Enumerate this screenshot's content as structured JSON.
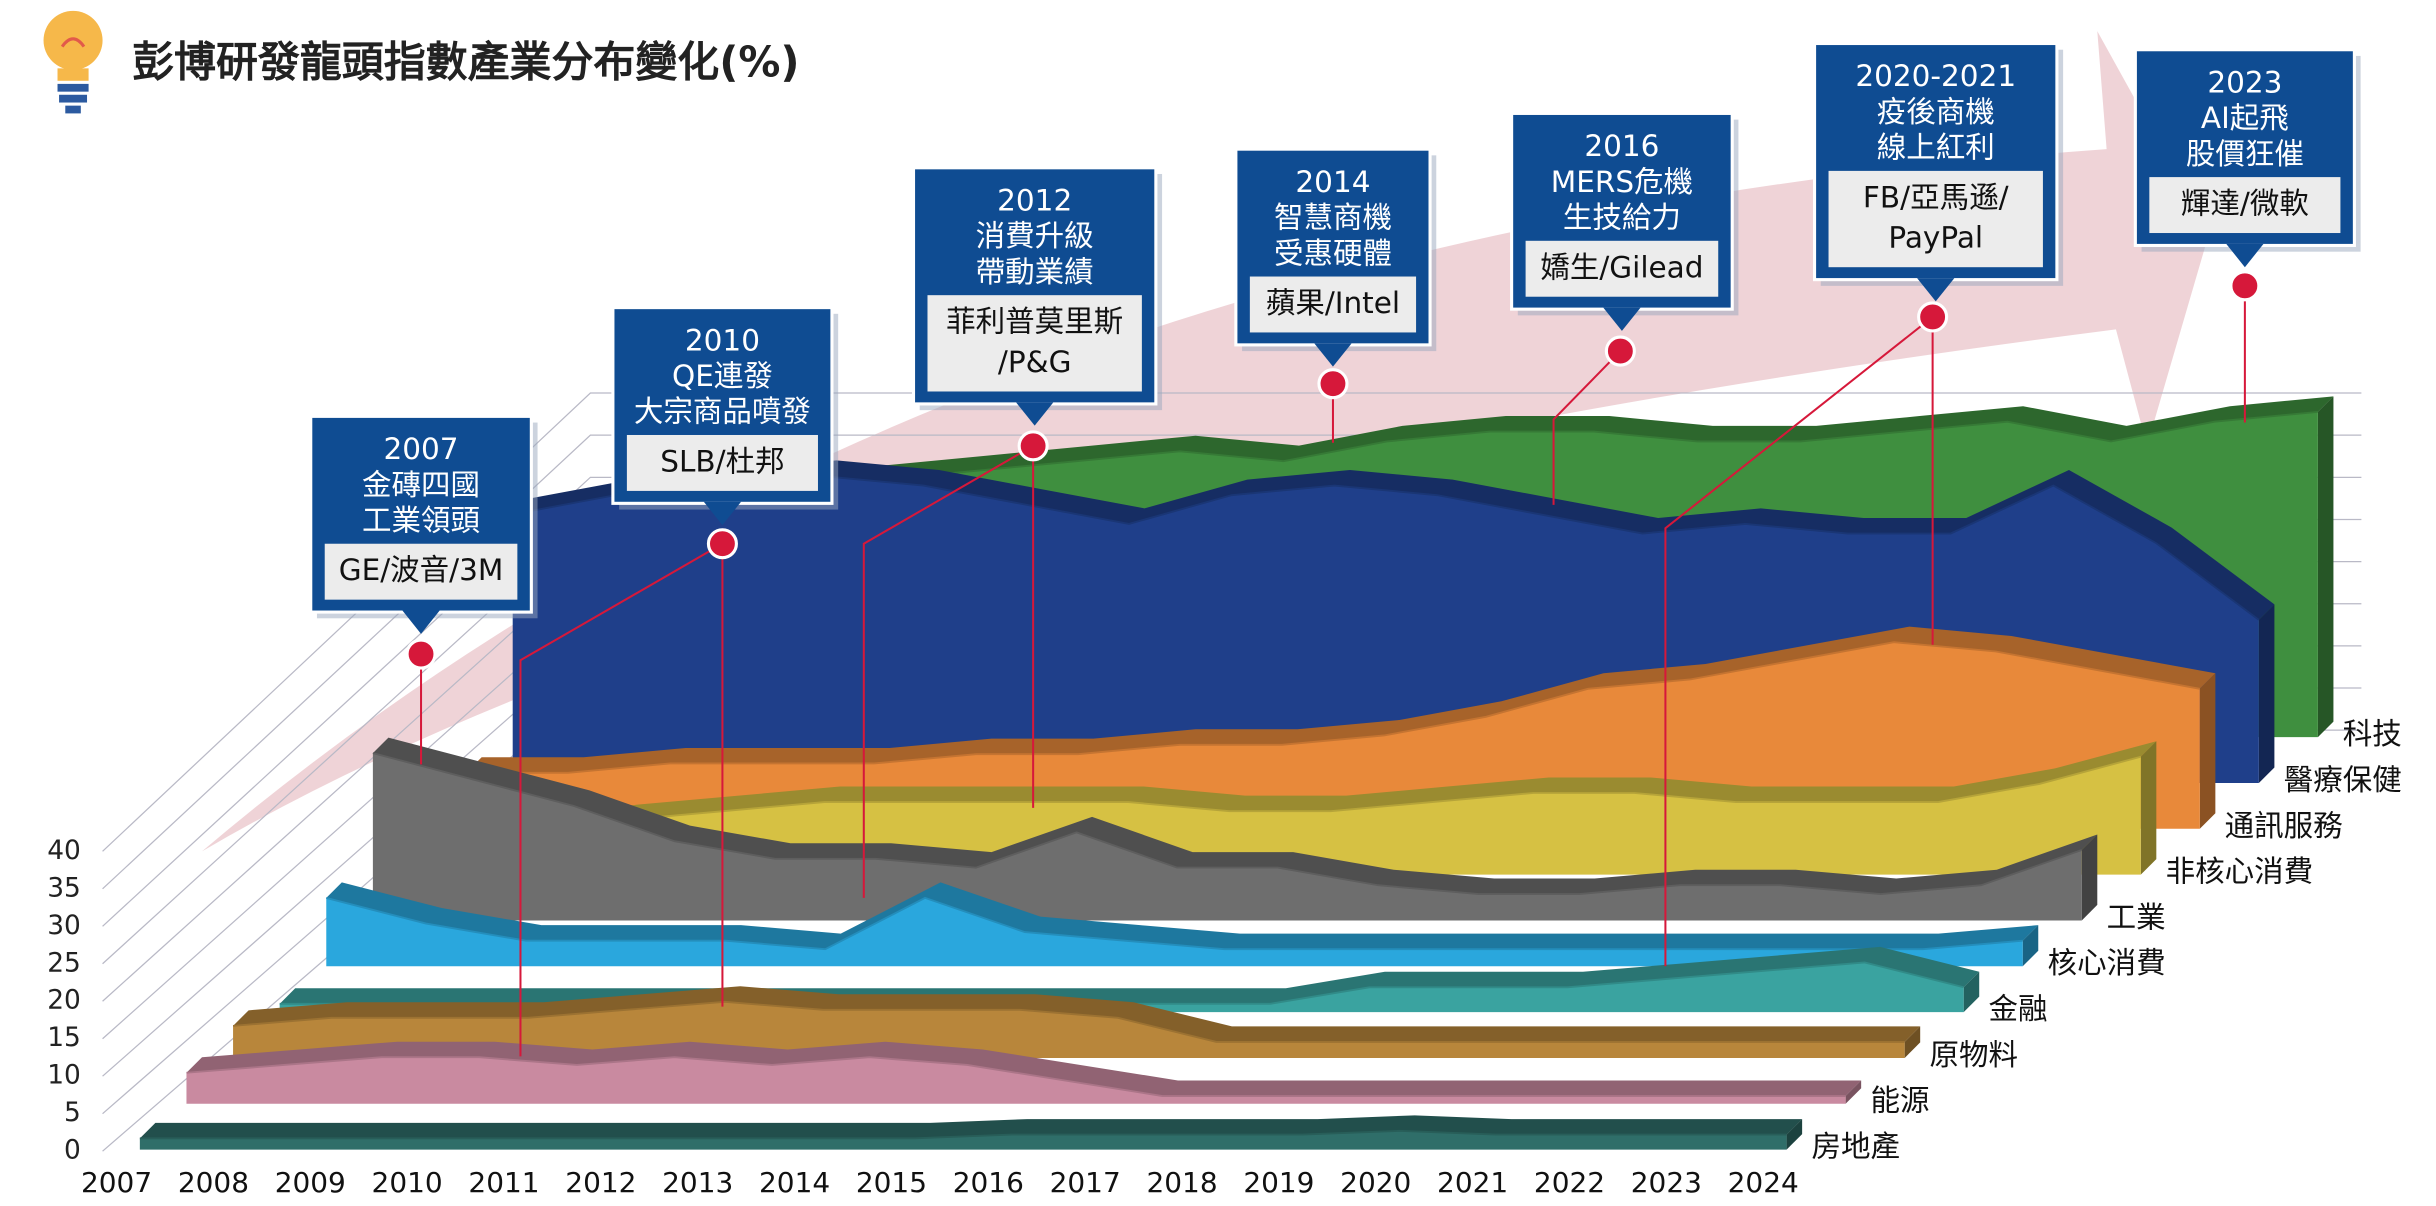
{
  "chart_data": {
    "type": "area",
    "title": "彭博研發龍頭指數產業分布變化(%)",
    "categories": [
      "2007",
      "2008",
      "2009",
      "2010",
      "2011",
      "2012",
      "2013",
      "2014",
      "2015",
      "2016",
      "2017",
      "2018",
      "2019",
      "2020",
      "2021",
      "2022",
      "2023",
      "2024"
    ],
    "ylim": [
      0,
      40
    ],
    "yticks": [
      0,
      5,
      10,
      15,
      20,
      25,
      30,
      35,
      40
    ],
    "series": [
      {
        "name": "房地產",
        "color": "#2f6e69",
        "values": [
          1.5,
          1.5,
          1.5,
          1.5,
          1.5,
          1.5,
          1.5,
          1.5,
          1.5,
          2,
          2,
          2,
          2,
          2.5,
          2,
          2,
          2,
          2
        ]
      },
      {
        "name": "能源",
        "color": "#c98aa0",
        "values": [
          4,
          5,
          6,
          6,
          5,
          6,
          5,
          6,
          5,
          3,
          1,
          1,
          1,
          1,
          1,
          1,
          1,
          1
        ]
      },
      {
        "name": "原物料",
        "color": "#b8863b",
        "values": [
          4,
          5,
          5,
          5,
          6,
          7,
          6,
          6,
          6,
          5,
          2,
          2,
          2,
          2,
          2,
          2,
          2,
          2
        ]
      },
      {
        "name": "金融",
        "color": "#3aa3a0",
        "values": [
          1,
          1,
          1,
          1,
          1,
          1,
          1,
          1,
          1,
          1,
          1,
          3,
          3,
          3,
          4,
          5,
          6,
          3
        ]
      },
      {
        "name": "核心消費",
        "color": "#2aa7dd",
        "values": [
          8,
          5,
          3,
          3,
          3,
          2,
          8,
          4,
          3,
          2,
          2,
          2,
          2,
          2,
          2,
          2,
          2,
          3
        ]
      },
      {
        "name": "工業",
        "color": "#6e6e6e",
        "values": [
          19,
          16,
          13,
          9,
          7,
          7,
          6,
          10,
          6,
          6,
          4,
          3,
          3,
          4,
          4,
          3,
          4,
          8
        ]
      },
      {
        "name": "非核心消費",
        "color": "#d6c143",
        "values": [
          4,
          5,
          6,
          7,
          8,
          8,
          8,
          8,
          7,
          7,
          8,
          9,
          9,
          8,
          8,
          8,
          10,
          13
        ]
      },
      {
        "name": "通訊服務",
        "color": "#e8893a",
        "values": [
          6,
          6,
          7,
          7,
          7,
          8,
          8,
          9,
          9,
          10,
          12,
          15,
          16,
          18,
          20,
          19,
          17,
          15
        ]
      },
      {
        "name": "醫療保健",
        "color": "#1f3f8a",
        "values": [
          28,
          30,
          31,
          32,
          31,
          29,
          27,
          30,
          31,
          30,
          28,
          26,
          27,
          26,
          26,
          31,
          25,
          17
        ]
      },
      {
        "name": "科技",
        "color": "#3f8f3f",
        "values": [
          20,
          22,
          24,
          26,
          27,
          28,
          29,
          28,
          30,
          31,
          31,
          30,
          30,
          31,
          32,
          30,
          32,
          33
        ]
      }
    ],
    "annotations": [
      {
        "year": "2007",
        "lines": [
          "金磚四國",
          "工業領頭"
        ],
        "companies": [
          "GE/波音/3M"
        ]
      },
      {
        "year": "2010",
        "lines": [
          "QE連發",
          "大宗商品噴發"
        ],
        "companies": [
          "SLB/杜邦"
        ]
      },
      {
        "year": "2012",
        "lines": [
          "消費升級",
          "帶動業績"
        ],
        "companies": [
          "菲利普莫里斯",
          "/P&G"
        ]
      },
      {
        "year": "2014",
        "lines": [
          "智慧商機",
          "受惠硬體"
        ],
        "companies": [
          "蘋果/Intel"
        ]
      },
      {
        "year": "2016",
        "lines": [
          "MERS危機",
          "生技給力"
        ],
        "companies": [
          "嬌生/Gilead"
        ]
      },
      {
        "year": "2020-2021",
        "lines": [
          "疫後商機",
          "線上紅利"
        ],
        "companies": [
          "FB/亞馬遜/",
          "PayPal"
        ]
      },
      {
        "year": "2023",
        "lines": [
          "AI起飛",
          "股價狂催"
        ],
        "companies": [
          "輝達/微軟"
        ]
      }
    ]
  }
}
